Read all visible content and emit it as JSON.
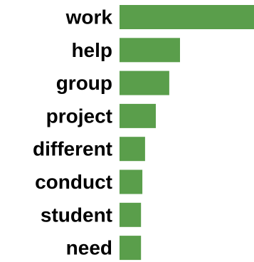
{
  "chart_data": {
    "type": "bar",
    "orientation": "horizontal",
    "categories": [
      "work",
      "help",
      "group",
      "project",
      "different",
      "conduct",
      "student",
      "need"
    ],
    "values": [
      100,
      45,
      37,
      27,
      19,
      17,
      16,
      16
    ],
    "xlim": [
      0,
      100
    ],
    "title": "",
    "xlabel": "",
    "ylabel": "",
    "grid": false,
    "legend": "none",
    "bar_color": "#5a9e4b"
  }
}
